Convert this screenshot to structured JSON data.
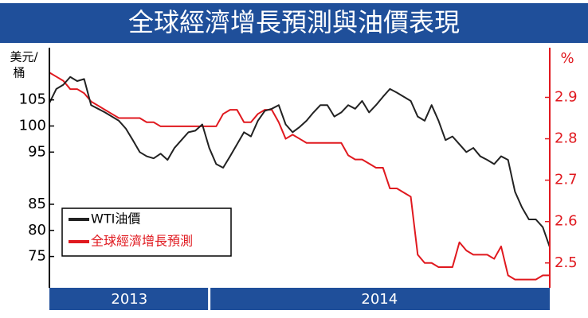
{
  "chart_data": {
    "type": "line",
    "title": "全球經濟增長預測與油價表現",
    "ylabel": [
      "美元/",
      "桶"
    ],
    "y2label": "%",
    "xlim": [
      0,
      72
    ],
    "xticks": [
      {
        "value": 0,
        "label": "2013"
      },
      {
        "value": 23,
        "label": "2014"
      }
    ],
    "ylim": [
      69,
      115
    ],
    "yticks": [
      75,
      80,
      85,
      95,
      100,
      105
    ],
    "y2lim": [
      2.44,
      3.02
    ],
    "y2ticks": [
      2.5,
      2.6,
      2.7,
      2.8,
      2.9
    ],
    "legend": "lower-left",
    "series": [
      {
        "name": "WTI油價",
        "color": "#222222",
        "values": [
          104.4,
          107.1,
          107.9,
          109.4,
          108.6,
          109,
          104,
          103.3,
          102.6,
          101.8,
          101,
          99.5,
          97.3,
          95,
          94.2,
          93.8,
          94.7,
          93.5,
          95.8,
          97.3,
          98.8,
          99.1,
          100.3,
          95.8,
          92.7,
          92,
          94.2,
          96.5,
          98.8,
          98,
          101,
          102.9,
          103.3,
          104,
          100.3,
          98.8,
          99.8,
          101,
          102.6,
          104,
          104,
          101.8,
          102.6,
          104,
          103.3,
          104.8,
          102.6,
          104,
          105.6,
          107.1,
          106.4,
          105.6,
          104.8,
          101.8,
          101,
          104,
          101,
          97.3,
          98,
          96.5,
          95,
          95.8,
          94.2,
          93.5,
          92.7,
          94.2,
          93.5,
          87.4,
          84.4,
          82.1,
          82.1,
          80.6,
          76.8
        ]
      },
      {
        "name": "全球經濟增長預測",
        "color": "#e0191f",
        "axis": "y2",
        "values": [
          2.96,
          2.95,
          2.94,
          2.92,
          2.92,
          2.91,
          2.89,
          2.88,
          2.87,
          2.86,
          2.85,
          2.85,
          2.85,
          2.85,
          2.84,
          2.84,
          2.83,
          2.83,
          2.83,
          2.83,
          2.83,
          2.83,
          2.83,
          2.83,
          2.83,
          2.86,
          2.87,
          2.87,
          2.84,
          2.84,
          2.86,
          2.87,
          2.87,
          2.84,
          2.8,
          2.81,
          2.8,
          2.79,
          2.79,
          2.79,
          2.79,
          2.79,
          2.79,
          2.76,
          2.75,
          2.75,
          2.74,
          2.73,
          2.73,
          2.68,
          2.68,
          2.67,
          2.66,
          2.52,
          2.5,
          2.5,
          2.49,
          2.49,
          2.49,
          2.55,
          2.53,
          2.52,
          2.52,
          2.52,
          2.51,
          2.54,
          2.47,
          2.46,
          2.46,
          2.46,
          2.46,
          2.47,
          2.47
        ]
      }
    ]
  }
}
